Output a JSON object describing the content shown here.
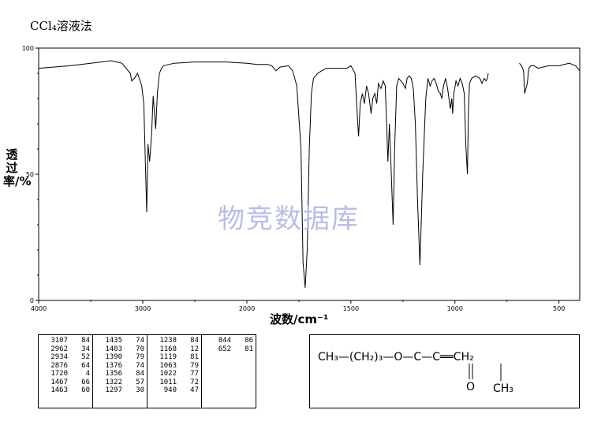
{
  "title": "CCl₄溶液法",
  "watermark": "物竞数据库",
  "chart_data": {
    "type": "line",
    "title": "CCl₄溶液法",
    "xlabel": "波数/cm⁻¹",
    "ylabel": "透过率/%",
    "xlim": [
      4000,
      400
    ],
    "ylim": [
      0,
      100
    ],
    "x_ticks": [
      "4000",
      "3000",
      "2000",
      "1500",
      "1000",
      "500"
    ],
    "y_ticks": [
      "0",
      "50",
      "100"
    ],
    "gaps": [
      [
        1700,
        1520
      ],
      [
        840,
        690
      ]
    ],
    "series": [
      {
        "x": [
          4000,
          3700,
          3500,
          3300,
          3200,
          3120,
          3107,
          3080,
          3050,
          3010,
          2990,
          2962,
          2950,
          2934,
          2915,
          2900,
          2876,
          2860,
          2840,
          2820,
          2800,
          2700,
          2500,
          2200,
          2000,
          1950,
          1900,
          1880,
          1860,
          1840,
          1800,
          1780,
          1760,
          1740,
          1730,
          1720,
          1710,
          1700,
          1690,
          1680,
          1660,
          1640,
          1620,
          1600,
          1580,
          1560,
          1540,
          1520,
          1500,
          1480,
          1467,
          1463,
          1455,
          1445,
          1435,
          1425,
          1415,
          1403,
          1395,
          1385,
          1376,
          1368,
          1356,
          1345,
          1335,
          1322,
          1315,
          1308,
          1297,
          1290,
          1280,
          1270,
          1260,
          1250,
          1238,
          1230,
          1220,
          1210,
          1200,
          1190,
          1180,
          1168,
          1155,
          1140,
          1130,
          1119,
          1110,
          1100,
          1090,
          1080,
          1070,
          1063,
          1055,
          1045,
          1035,
          1022,
          1015,
          1011,
          1005,
          995,
          985,
          975,
          965,
          955,
          948,
          940,
          935,
          930,
          920,
          900,
          880,
          870,
          860,
          850,
          844,
          840,
          690,
          680,
          670,
          665,
          652,
          645,
          635,
          620,
          600,
          550,
          500,
          450,
          420,
          400
        ],
        "y": [
          92,
          93,
          94,
          95,
          94,
          90,
          87,
          88,
          90,
          85,
          78,
          35,
          62,
          55,
          66,
          81,
          68,
          82,
          90,
          92,
          93,
          94,
          94.5,
          94.5,
          94,
          93.5,
          93.5,
          93,
          91,
          92.5,
          93,
          91,
          85,
          60,
          15,
          5,
          20,
          60,
          82,
          88,
          90,
          91,
          92,
          92,
          92,
          92,
          92,
          92,
          93,
          90,
          70,
          65,
          78,
          82,
          78,
          85,
          82,
          74,
          80,
          82,
          78,
          86,
          84,
          87,
          85,
          55,
          70,
          55,
          30,
          60,
          85,
          88,
          87,
          86,
          84,
          88,
          89,
          88,
          84,
          70,
          40,
          14,
          50,
          80,
          88,
          85,
          87,
          88,
          86,
          83,
          82,
          80,
          85,
          88,
          84,
          76,
          80,
          74,
          82,
          87,
          85,
          88,
          86,
          82,
          62,
          50,
          75,
          86,
          88,
          89,
          88,
          86,
          88,
          87,
          88,
          90,
          94,
          93,
          91,
          82,
          86,
          92,
          93,
          93,
          92,
          93,
          93,
          94,
          93,
          91
        ]
      }
    ]
  },
  "peak_table": [
    [
      [
        "3107",
        "84"
      ],
      [
        "2962",
        "34"
      ],
      [
        "2934",
        "52"
      ],
      [
        "2876",
        "64"
      ],
      [
        "1720",
        "4"
      ],
      [
        "1467",
        "66"
      ],
      [
        "1463",
        "60"
      ]
    ],
    [
      [
        "1435",
        "74"
      ],
      [
        "1403",
        "70"
      ],
      [
        "1390",
        "79"
      ],
      [
        "1376",
        "74"
      ],
      [
        "1356",
        "84"
      ],
      [
        "1322",
        "57"
      ],
      [
        "1297",
        "30"
      ]
    ],
    [
      [
        "1238",
        "84"
      ],
      [
        "1168",
        "12"
      ],
      [
        "1119",
        "81"
      ],
      [
        "1063",
        "79"
      ],
      [
        "1022",
        "77"
      ],
      [
        "1011",
        "72"
      ],
      [
        "940",
        "47"
      ]
    ],
    [
      [
        "844",
        "86"
      ],
      [
        "652",
        "81"
      ]
    ]
  ],
  "structure": {
    "row": "CH₃—(CH₂)₃—O—C—C══CH₂",
    "carbonyl_o": "O",
    "methyl": "CH₃"
  }
}
